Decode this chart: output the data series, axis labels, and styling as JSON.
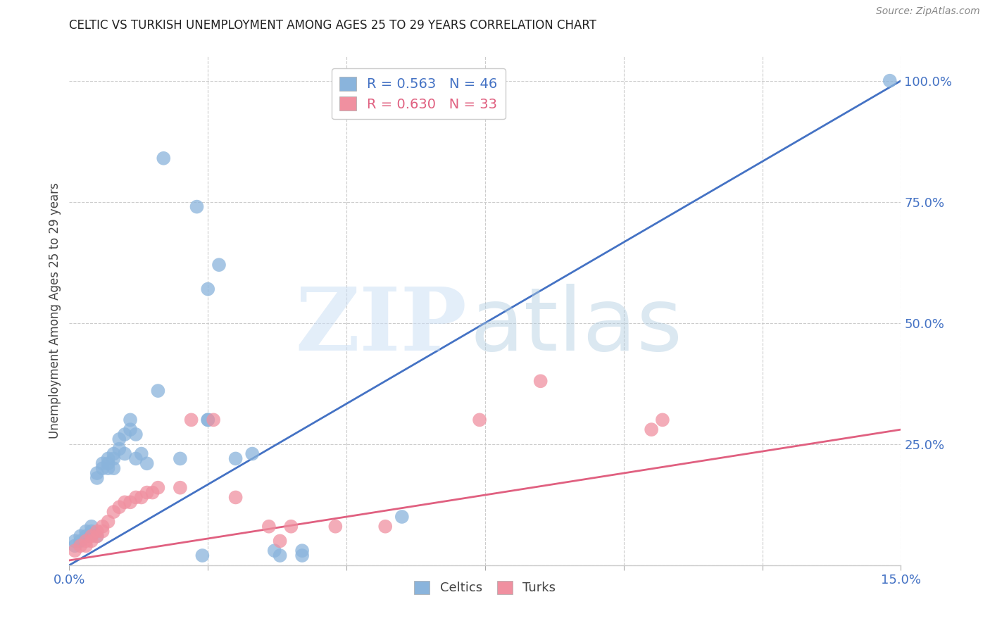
{
  "title": "CELTIC VS TURKISH UNEMPLOYMENT AMONG AGES 25 TO 29 YEARS CORRELATION CHART",
  "source": "Source: ZipAtlas.com",
  "ylabel": "Unemployment Among Ages 25 to 29 years",
  "xlim": [
    0.0,
    0.15
  ],
  "ylim": [
    0.0,
    1.05
  ],
  "xtick_positions": [
    0.0,
    0.025,
    0.05,
    0.075,
    0.1,
    0.125,
    0.15
  ],
  "xtick_labels": [
    "0.0%",
    "",
    "",
    "",
    "",
    "",
    "15.0%"
  ],
  "ytick_vals_right": [
    0.0,
    0.25,
    0.5,
    0.75,
    1.0
  ],
  "ytick_labels_right": [
    "",
    "25.0%",
    "50.0%",
    "75.0%",
    "100.0%"
  ],
  "celtics_color": "#8ab4dc",
  "turks_color": "#f090a0",
  "celtics_line_color": "#4472c4",
  "turks_line_color": "#e06080",
  "celtics_R": 0.563,
  "celtics_N": 46,
  "turks_R": 0.63,
  "turks_N": 33,
  "celtic_line_x": [
    0.0,
    0.15
  ],
  "celtic_line_y": [
    0.0,
    1.0
  ],
  "turk_line_x": [
    0.0,
    0.15
  ],
  "turk_line_y": [
    0.01,
    0.28
  ],
  "celtics_x": [
    0.001,
    0.001,
    0.002,
    0.002,
    0.003,
    0.003,
    0.004,
    0.004,
    0.005,
    0.005,
    0.005,
    0.006,
    0.006,
    0.007,
    0.007,
    0.007,
    0.008,
    0.008,
    0.008,
    0.009,
    0.009,
    0.01,
    0.01,
    0.011,
    0.011,
    0.012,
    0.012,
    0.013,
    0.014,
    0.016,
    0.017,
    0.02,
    0.023,
    0.027,
    0.025,
    0.025,
    0.025,
    0.024,
    0.037,
    0.038,
    0.042,
    0.042,
    0.03,
    0.033,
    0.06,
    0.148
  ],
  "celtics_y": [
    0.04,
    0.05,
    0.05,
    0.06,
    0.06,
    0.07,
    0.07,
    0.08,
    0.06,
    0.18,
    0.19,
    0.2,
    0.21,
    0.2,
    0.22,
    0.21,
    0.22,
    0.2,
    0.23,
    0.24,
    0.26,
    0.27,
    0.23,
    0.28,
    0.3,
    0.27,
    0.22,
    0.23,
    0.21,
    0.36,
    0.84,
    0.22,
    0.74,
    0.62,
    0.57,
    0.3,
    0.3,
    0.02,
    0.03,
    0.02,
    0.02,
    0.03,
    0.22,
    0.23,
    0.1,
    1.0
  ],
  "turks_x": [
    0.001,
    0.002,
    0.003,
    0.003,
    0.004,
    0.004,
    0.005,
    0.005,
    0.006,
    0.006,
    0.007,
    0.008,
    0.009,
    0.01,
    0.011,
    0.012,
    0.013,
    0.014,
    0.015,
    0.016,
    0.02,
    0.022,
    0.026,
    0.03,
    0.036,
    0.038,
    0.04,
    0.048,
    0.057,
    0.074,
    0.085,
    0.105,
    0.107
  ],
  "turks_y": [
    0.03,
    0.04,
    0.04,
    0.05,
    0.06,
    0.05,
    0.07,
    0.06,
    0.08,
    0.07,
    0.09,
    0.11,
    0.12,
    0.13,
    0.13,
    0.14,
    0.14,
    0.15,
    0.15,
    0.16,
    0.16,
    0.3,
    0.3,
    0.14,
    0.08,
    0.05,
    0.08,
    0.08,
    0.08,
    0.3,
    0.38,
    0.28,
    0.3
  ]
}
